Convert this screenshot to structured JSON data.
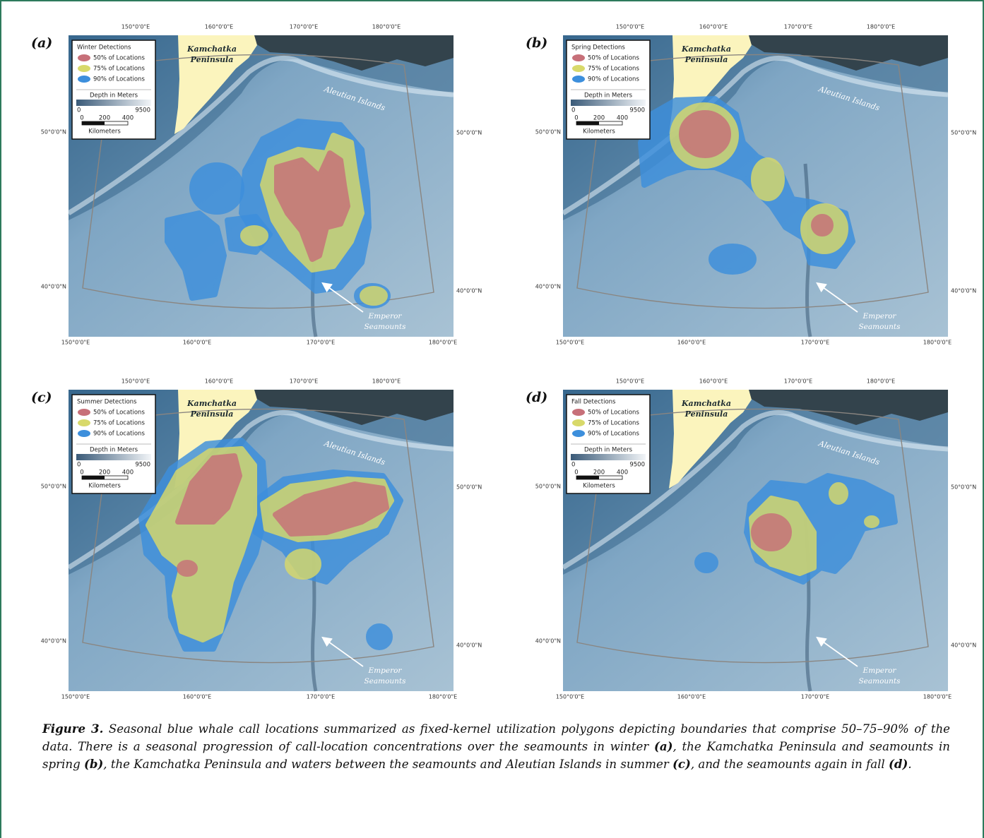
{
  "panels": [
    {
      "label": "(a)",
      "legend_title": "Winter Detections"
    },
    {
      "label": "(b)",
      "legend_title": "Spring Detections"
    },
    {
      "label": "(c)",
      "legend_title": "Summer Detections"
    },
    {
      "label": "(d)",
      "legend_title": "Fall Detections"
    }
  ],
  "legend": {
    "items": [
      "50% of Locations",
      "75% of Locations",
      "90% of Locations"
    ],
    "depth_title": "Depth in Meters",
    "depth_min": "0",
    "depth_max": "9500",
    "scale_labels": [
      "0",
      "200",
      "400"
    ],
    "scale_unit": "Kilometers"
  },
  "places": {
    "kamchatka": [
      "Kamchatka",
      "Peninsula"
    ],
    "aleutian": "Aleutian Islands",
    "emperor": [
      "Emperor",
      "Seamounts"
    ]
  },
  "axes": {
    "top": [
      "150°0'0\"E",
      "160°0'0\"E",
      "170°0'0\"E",
      "180°0'0\"E"
    ],
    "bottom": [
      "150°0'0\"E",
      "160°0'0\"E",
      "170°0'0\"E",
      "180°0'0\"E"
    ],
    "left": [
      "50°0'0\"N",
      "40°0'0\"N"
    ],
    "right": [
      "50°0'0\"N",
      "40°0'0\"N"
    ]
  },
  "caption": {
    "runs": [
      {
        "text": "Figure 3.",
        "bold": true
      },
      {
        "text": " Seasonal blue whale call locations summarized as fixed-kernel utilization polygons depicting boundaries that comprise 50–75–90% of the data. There is a seasonal progression of call-location concentrations over the seamounts in winter ",
        "bold": false
      },
      {
        "text": "(a)",
        "bold": true
      },
      {
        "text": ", the Kamchatka Peninsula and seamounts in spring ",
        "bold": false
      },
      {
        "text": "(b)",
        "bold": true
      },
      {
        "text": ", the Kamchatka Peninsula and waters between the seamounts and Aleutian Islands in summer ",
        "bold": false
      },
      {
        "text": "(c)",
        "bold": true
      },
      {
        "text": ", and the seamounts again in fall ",
        "bold": false
      },
      {
        "text": "(d)",
        "bold": true
      },
      {
        "text": ".",
        "bold": false
      }
    ]
  }
}
